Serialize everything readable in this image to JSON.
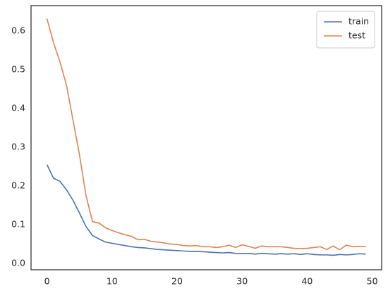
{
  "chart_data": {
    "type": "line",
    "x": [
      0,
      1,
      2,
      3,
      4,
      5,
      6,
      7,
      8,
      9,
      10,
      11,
      12,
      13,
      14,
      15,
      16,
      17,
      18,
      19,
      20,
      21,
      22,
      23,
      24,
      25,
      26,
      27,
      28,
      29,
      30,
      31,
      32,
      33,
      34,
      35,
      36,
      37,
      38,
      39,
      40,
      41,
      42,
      43,
      44,
      45,
      46,
      47,
      48,
      49
    ],
    "series": [
      {
        "name": "train",
        "color": "#4c72b0",
        "values": [
          0.255,
          0.22,
          0.212,
          0.19,
          0.163,
          0.13,
          0.095,
          0.072,
          0.063,
          0.055,
          0.052,
          0.049,
          0.046,
          0.043,
          0.041,
          0.04,
          0.038,
          0.036,
          0.035,
          0.034,
          0.033,
          0.032,
          0.031,
          0.031,
          0.03,
          0.029,
          0.028,
          0.027,
          0.028,
          0.026,
          0.025,
          0.026,
          0.024,
          0.026,
          0.025,
          0.024,
          0.025,
          0.024,
          0.025,
          0.023,
          0.025,
          0.023,
          0.022,
          0.022,
          0.021,
          0.023,
          0.022,
          0.023,
          0.025,
          0.024
        ]
      },
      {
        "name": "test",
        "color": "#dd8452",
        "values": [
          0.632,
          0.57,
          0.52,
          0.46,
          0.37,
          0.28,
          0.175,
          0.108,
          0.104,
          0.092,
          0.085,
          0.079,
          0.074,
          0.07,
          0.061,
          0.062,
          0.057,
          0.055,
          0.053,
          0.05,
          0.049,
          0.046,
          0.045,
          0.046,
          0.043,
          0.043,
          0.041,
          0.043,
          0.047,
          0.041,
          0.048,
          0.044,
          0.039,
          0.045,
          0.043,
          0.043,
          0.043,
          0.041,
          0.039,
          0.038,
          0.039,
          0.041,
          0.043,
          0.036,
          0.045,
          0.035,
          0.047,
          0.043,
          0.044,
          0.044
        ]
      }
    ],
    "xlim": [
      -2.45,
      51.45
    ],
    "xticks": [
      0,
      10,
      20,
      30,
      40,
      50
    ],
    "ylim": [
      -0.0164,
      0.6655
    ],
    "yticks": [
      {
        "value": 0,
        "label": "0.0"
      },
      0.1,
      0.2,
      0.3,
      0.4,
      0.5,
      0.6
    ],
    "grid": false,
    "legend": "upper right"
  }
}
